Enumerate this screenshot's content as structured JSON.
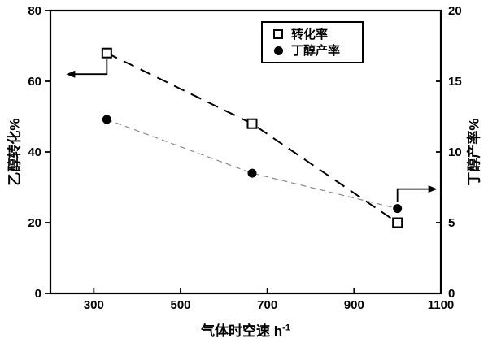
{
  "chart_data": {
    "type": "line",
    "x": [
      330,
      665,
      1000
    ],
    "series": [
      {
        "name": "转化率",
        "axis": "left",
        "marker": "open-square",
        "line_style": "long-dash",
        "line_color": "#000000",
        "values": [
          68,
          48,
          20
        ]
      },
      {
        "name": "丁醇产率",
        "axis": "right",
        "marker": "filled-circle",
        "line_style": "short-dash",
        "line_color": "#8a8a8a",
        "values": [
          12.3,
          8.5,
          6.0
        ]
      }
    ],
    "xlabel_base": "气体时空速 h",
    "xlabel_exponent": "-1",
    "ylabel_left": "乙醇转化%",
    "ylabel_right": "丁醇产率%",
    "xlim": [
      200,
      1100
    ],
    "xticks": [
      300,
      500,
      700,
      900,
      1100
    ],
    "ylim_left": [
      0,
      80
    ],
    "yticks_left": [
      0,
      20,
      40,
      60,
      80
    ],
    "ylim_right": [
      0,
      20
    ],
    "yticks_right": [
      0,
      5,
      10,
      15,
      20
    ],
    "grid": false,
    "legend_position": "top-center",
    "legend_entries": [
      "转化率",
      "丁醇产率"
    ],
    "annotations": [
      {
        "type": "axis-pointer-arrow",
        "direction": "left",
        "anchor_series": "转化率",
        "anchor_point_index": 0,
        "target_axis": "left"
      },
      {
        "type": "axis-pointer-arrow",
        "direction": "right",
        "anchor_series": "丁醇产率",
        "anchor_point_index": 2,
        "target_axis": "right"
      }
    ],
    "colors": {
      "foreground": "#000000",
      "background": "#ffffff",
      "yield_line": "#8a8a8a"
    }
  }
}
